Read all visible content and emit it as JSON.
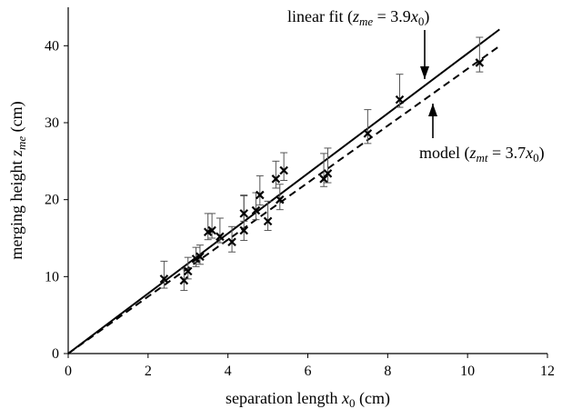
{
  "chart_data": {
    "type": "scatter",
    "title": "",
    "xlabel": "separation length x0 (cm)",
    "ylabel": "merging height zme (cm)",
    "x_label_parts": {
      "pre": "separation length ",
      "var": "x",
      "sub": "0",
      "post": " (cm)"
    },
    "y_label_parts": {
      "pre": "merging height ",
      "var": "z",
      "sub": "me",
      "post": " (cm)"
    },
    "xlim": [
      0,
      12
    ],
    "ylim": [
      0,
      45
    ],
    "xticks": [
      0,
      2,
      4,
      6,
      8,
      10,
      12
    ],
    "yticks": [
      0,
      10,
      20,
      30,
      40
    ],
    "grid": false,
    "series": [
      {
        "marker": "x",
        "color": "#000000",
        "points": [
          {
            "x": 2.4,
            "y": 9.7,
            "err_up": 2.3,
            "err_down": 1.2
          },
          {
            "x": 2.9,
            "y": 9.5,
            "err_up": 1.5,
            "err_down": 1.3
          },
          {
            "x": 3.0,
            "y": 10.7,
            "err_up": 1.8,
            "err_down": 1.0
          },
          {
            "x": 3.2,
            "y": 12.3,
            "err_up": 1.5,
            "err_down": 1.0
          },
          {
            "x": 3.3,
            "y": 12.6,
            "err_up": 1.5,
            "err_down": 1.0
          },
          {
            "x": 3.5,
            "y": 15.8,
            "err_up": 2.4,
            "err_down": 1.0
          },
          {
            "x": 3.6,
            "y": 16.0,
            "err_up": 2.2,
            "err_down": 1.0
          },
          {
            "x": 3.8,
            "y": 15.2,
            "err_up": 2.4,
            "err_down": 0.8
          },
          {
            "x": 4.1,
            "y": 14.5,
            "err_up": 2.0,
            "err_down": 1.3
          },
          {
            "x": 4.4,
            "y": 16.0,
            "err_up": 4.5,
            "err_down": 1.3
          },
          {
            "x": 4.4,
            "y": 18.2,
            "err_up": 2.4,
            "err_down": 1.0
          },
          {
            "x": 4.7,
            "y": 18.6,
            "err_up": 2.3,
            "err_down": 1.2
          },
          {
            "x": 4.8,
            "y": 20.6,
            "err_up": 2.5,
            "err_down": 1.3
          },
          {
            "x": 5.0,
            "y": 17.2,
            "err_up": 2.6,
            "err_down": 1.2
          },
          {
            "x": 5.2,
            "y": 22.7,
            "err_up": 2.3,
            "err_down": 1.2
          },
          {
            "x": 5.3,
            "y": 20.0,
            "err_up": 2.0,
            "err_down": 1.3
          },
          {
            "x": 5.4,
            "y": 23.8,
            "err_up": 2.3,
            "err_down": 1.3
          },
          {
            "x": 6.4,
            "y": 22.7,
            "err_up": 3.3,
            "err_down": 1.0
          },
          {
            "x": 6.5,
            "y": 23.4,
            "err_up": 3.3,
            "err_down": 1.2
          },
          {
            "x": 7.5,
            "y": 28.6,
            "err_up": 3.1,
            "err_down": 1.3
          },
          {
            "x": 8.3,
            "y": 33.0,
            "err_up": 3.3,
            "err_down": 1.0
          },
          {
            "x": 10.3,
            "y": 37.8,
            "err_up": 3.3,
            "err_down": 1.2
          }
        ]
      }
    ],
    "lines": [
      {
        "slope": 3.9,
        "x_range": [
          0,
          10.8
        ],
        "style": "solid",
        "color": "#000000"
      },
      {
        "slope": 3.7,
        "x_range": [
          0,
          10.8
        ],
        "style": "dashed",
        "color": "#000000"
      }
    ],
    "annotations": [
      {
        "id": "fit",
        "pre": "linear fit (",
        "var": "z",
        "sub": "me",
        "mid": " = 3.9",
        "var2": "x",
        "sub2": "0",
        "post": ")",
        "arrow": "down"
      },
      {
        "id": "model",
        "pre": "model (",
        "var": "z",
        "sub": "mt",
        "mid": " = 3.7",
        "var2": "x",
        "sub2": "0",
        "post": ")",
        "arrow": "up"
      }
    ]
  }
}
